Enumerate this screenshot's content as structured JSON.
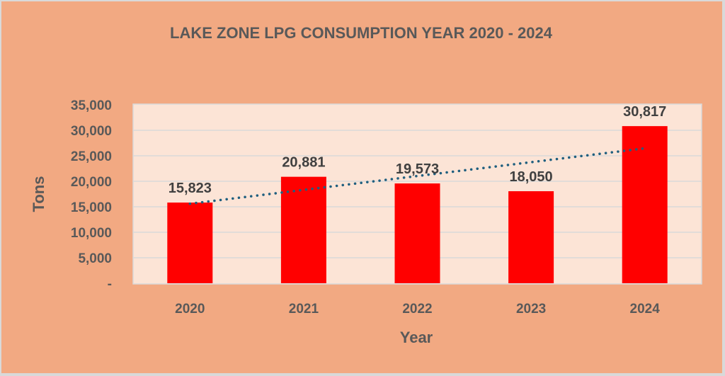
{
  "chart_data": {
    "type": "bar",
    "title": "LAKE ZONE LPG CONSUMPTION YEAR 2020 - 2024",
    "xlabel": "Year",
    "ylabel": "Tons",
    "categories": [
      "2020",
      "2021",
      "2022",
      "2023",
      "2024"
    ],
    "values": [
      15823,
      20881,
      19573,
      18050,
      30817
    ],
    "data_labels": [
      "15,823",
      "20,881",
      "19,573",
      "18,050",
      "30,817"
    ],
    "ylim": [
      0,
      35000
    ],
    "yticks": [
      0,
      5000,
      10000,
      15000,
      20000,
      25000,
      30000,
      35000
    ],
    "ytick_labels": [
      "-",
      "5,000",
      "10,000",
      "15,000",
      "20,000",
      "25,000",
      "30,000",
      "35,000"
    ],
    "grid": true,
    "legend": "none",
    "trendline": {
      "type": "linear",
      "style": "dotted",
      "color": "#1f5f7f"
    },
    "colors": {
      "bar": "#ff0000",
      "plot_bg": "#fce4d6",
      "chart_bg": "#f2a982",
      "gridline": "#d9d9d9",
      "text": "#595959"
    }
  }
}
